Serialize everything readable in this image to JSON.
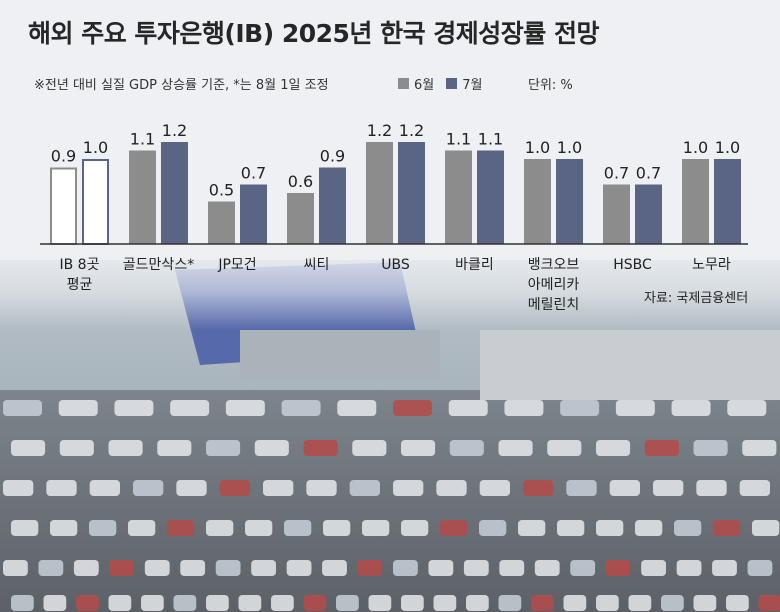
{
  "title": "해외 주요 투자은행(IB) 2025년 한국 경제성장률 전망",
  "subtitle": "※전년 대비 실질 GDP 상승률 기준, *는 8월 1일 조정",
  "unit": "단위: %",
  "source": "자료: 국제금융센터",
  "colors": {
    "june": "#8c8c8c",
    "july": "#5a6484",
    "axis": "#333333"
  },
  "chart_data": {
    "type": "bar",
    "title": "해외 주요 투자은행(IB) 2025년 한국 경제성장률 전망",
    "ylabel": "",
    "unit": "%",
    "categories": [
      [
        "IB 8곳",
        "평균"
      ],
      [
        "골드만삭스*"
      ],
      [
        "JP모건"
      ],
      [
        "씨티"
      ],
      [
        "UBS"
      ],
      [
        "바클리"
      ],
      [
        "뱅크오브",
        "아메리카",
        "메릴린치"
      ],
      [
        "HSBC"
      ],
      [
        "노무라"
      ]
    ],
    "series": [
      {
        "name": "6월",
        "values": [
          0.9,
          1.1,
          0.5,
          0.6,
          1.2,
          1.1,
          1.0,
          0.7,
          1.0
        ]
      },
      {
        "name": "7월",
        "values": [
          1.0,
          1.2,
          0.7,
          0.9,
          1.2,
          1.1,
          1.0,
          0.7,
          1.0
        ]
      }
    ],
    "value_labels": [
      [
        "0.9",
        "1.1",
        "0.5",
        "0.6",
        "1.2",
        "1.1",
        "1.0",
        "0.7",
        "1.0"
      ],
      [
        "1.0",
        "1.2",
        "0.7",
        "0.9",
        "1.2",
        "1.1",
        "1.0",
        "0.7",
        "1.0"
      ]
    ],
    "ylim": [
      0,
      1.2
    ],
    "grid": false,
    "legend": "top",
    "note": "IB 8곳 평균 bars drawn as outlined (hollow) boxes"
  }
}
